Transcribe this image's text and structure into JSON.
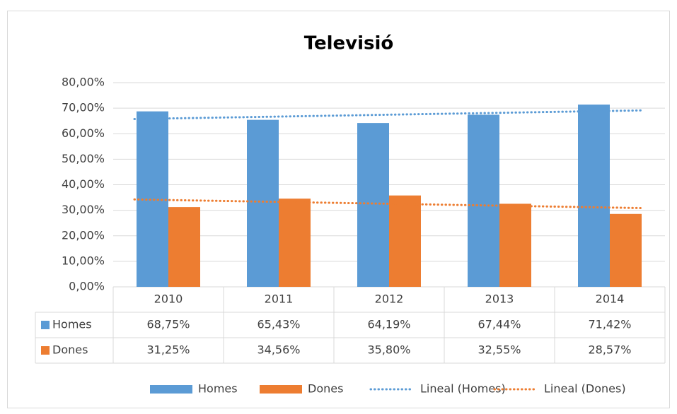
{
  "chart_data": {
    "type": "bar",
    "title": "Televisió",
    "categories": [
      "2010",
      "2011",
      "2012",
      "2013",
      "2014"
    ],
    "series": [
      {
        "name": "Homes",
        "color": "#5b9bd5",
        "values": [
          68.75,
          65.43,
          64.19,
          67.44,
          71.42
        ],
        "value_labels": [
          "68,75%",
          "65,43%",
          "64,19%",
          "67,44%",
          "71,42%"
        ]
      },
      {
        "name": "Dones",
        "color": "#ed7d31",
        "values": [
          31.25,
          34.56,
          35.8,
          32.55,
          28.57
        ],
        "value_labels": [
          "31,25%",
          "34,56%",
          "35,80%",
          "32,55%",
          "28,57%"
        ]
      }
    ],
    "trendlines": [
      {
        "name": "Lineal (Homes)",
        "color": "#5b9bd5",
        "values": [
          65.98,
          66.71,
          67.45,
          68.18,
          68.92
        ]
      },
      {
        "name": "Lineal (Dones)",
        "color": "#ed7d31",
        "values": [
          34.02,
          33.28,
          32.55,
          31.81,
          31.07
        ]
      }
    ],
    "ylim": [
      0,
      80
    ],
    "yticks": [
      {
        "value": 0,
        "label": "0,00%"
      },
      {
        "value": 10,
        "label": "10,00%"
      },
      {
        "value": 20,
        "label": "20,00%"
      },
      {
        "value": 30,
        "label": "30,00%"
      },
      {
        "value": 40,
        "label": "40,00%"
      },
      {
        "value": 50,
        "label": "50,00%"
      },
      {
        "value": 60,
        "label": "60,00%"
      },
      {
        "value": 70,
        "label": "70,00%"
      },
      {
        "value": 80,
        "label": "80,00%"
      }
    ],
    "grid": true,
    "legend": "bottom"
  }
}
